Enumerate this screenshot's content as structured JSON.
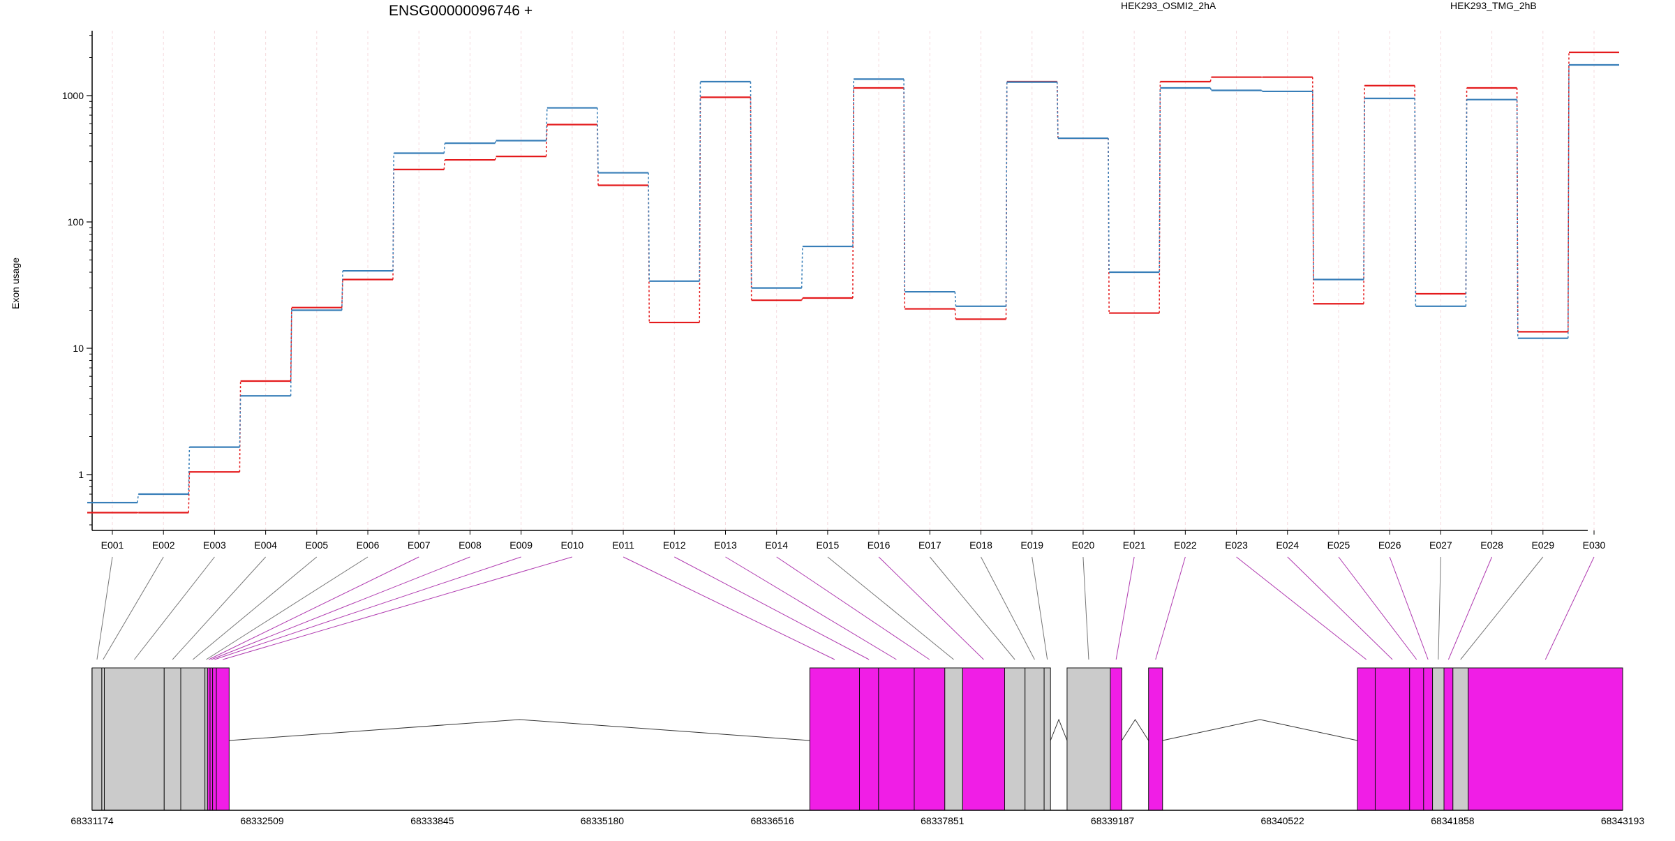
{
  "chart_data": {
    "type": "line",
    "title": "ENSG00000096746 +",
    "ylabel": "Exon usage",
    "xlabel": "",
    "yscale": "log",
    "ylim": [
      0.4,
      3000
    ],
    "yticks": [
      1,
      10,
      100,
      1000
    ],
    "grid": "vertical-dashed-per-exon",
    "legend_placement": "top",
    "series": [
      {
        "name": "HEK293_OSMI2_2hA",
        "color": "#e41a1c",
        "values": [
          0.5,
          0.5,
          1.05,
          5.5,
          21,
          35,
          260,
          310,
          330,
          590,
          195,
          16,
          970,
          24,
          25,
          1150,
          20.5,
          17,
          1290,
          460,
          19,
          1290,
          1400,
          1400,
          22.5,
          1200,
          27,
          1150,
          13.5,
          2200
        ]
      },
      {
        "name": "HEK293_TMG_2hB",
        "color": "#377eb8",
        "values": [
          0.6,
          0.7,
          1.65,
          4.2,
          20,
          41,
          350,
          420,
          440,
          800,
          245,
          34,
          1290,
          30,
          64,
          1350,
          28,
          21.5,
          1280,
          460,
          40,
          1150,
          1100,
          1080,
          35,
          950,
          21.5,
          930,
          12,
          1750
        ]
      }
    ],
    "exon_labels": [
      "E001",
      "E002",
      "E003",
      "E004",
      "E005",
      "E006",
      "E007",
      "E008",
      "E009",
      "E010",
      "E011",
      "E012",
      "E013",
      "E014",
      "E015",
      "E016",
      "E017",
      "E018",
      "E019",
      "E020",
      "E021",
      "E022",
      "E023",
      "E024",
      "E025",
      "E026",
      "E027",
      "E028",
      "E029",
      "E030"
    ],
    "exon_significant": [
      false,
      false,
      false,
      false,
      false,
      false,
      true,
      true,
      true,
      true,
      true,
      true,
      true,
      true,
      false,
      true,
      false,
      false,
      false,
      false,
      true,
      true,
      true,
      true,
      true,
      true,
      false,
      true,
      false,
      true
    ],
    "gene_model": {
      "start": 68331174,
      "end": 68343193,
      "ticks": [
        68331174,
        68332509,
        68333845,
        68335180,
        68336516,
        68337851,
        68339187,
        68340522,
        68341858,
        68343193
      ],
      "exons": [
        [
          68331174,
          68331250
        ],
        [
          68331250,
          68331270
        ],
        [
          68331270,
          68331740
        ],
        [
          68331740,
          68331870
        ],
        [
          68331870,
          68332060
        ],
        [
          68332060,
          68332080
        ],
        [
          68332080,
          68332100
        ],
        [
          68332100,
          68332120
        ],
        [
          68332120,
          68332150
        ],
        [
          68332150,
          68332250
        ],
        [
          68336810,
          68337200
        ],
        [
          68337200,
          68337350
        ],
        [
          68337350,
          68337630
        ],
        [
          68337630,
          68337870
        ],
        [
          68337870,
          68338010
        ],
        [
          68338010,
          68338340
        ],
        [
          68338340,
          68338500
        ],
        [
          68338500,
          68338650
        ],
        [
          68338650,
          68338700
        ],
        [
          68338830,
          68339170
        ],
        [
          68339170,
          68339260
        ],
        [
          68339470,
          68339580
        ],
        [
          68341110,
          68341250
        ],
        [
          68341250,
          68341520
        ],
        [
          68341520,
          68341630
        ],
        [
          68341630,
          68341700
        ],
        [
          68341700,
          68341790
        ],
        [
          68341790,
          68341860
        ],
        [
          68341860,
          68341980
        ],
        [
          68341980,
          68343193
        ]
      ],
      "exon_colors": {
        "significant": "#f01ee6",
        "normal": "#cbcbcb"
      }
    }
  }
}
